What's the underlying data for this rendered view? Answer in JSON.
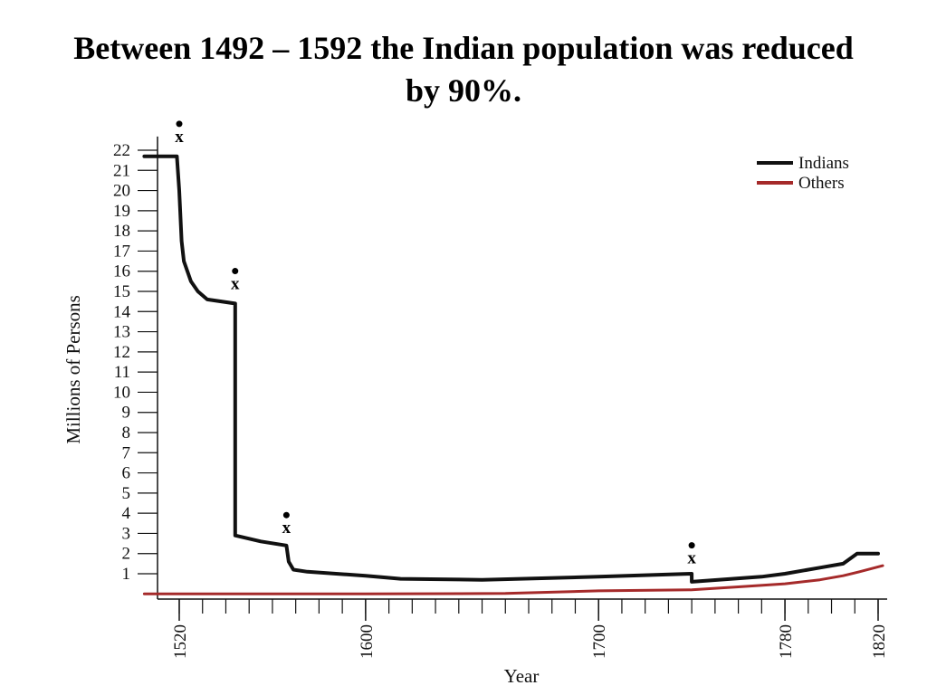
{
  "title_lines": [
    "Between 1492 – 1592 the Indian population was reduced",
    "by 90%."
  ],
  "chart_data": {
    "type": "line",
    "xlabel": "Year",
    "ylabel": "Millions of Persons",
    "xlim": [
      1505,
      1825
    ],
    "ylim": [
      0,
      22.5
    ],
    "xticks": [
      1520,
      1600,
      1700,
      1780,
      1820
    ],
    "yticks": [
      1,
      2,
      3,
      4,
      5,
      6,
      7,
      8,
      9,
      10,
      11,
      12,
      13,
      14,
      15,
      16,
      17,
      18,
      19,
      20,
      21,
      22
    ],
    "legend_position": "top-right",
    "series": [
      {
        "name": "Indians",
        "color": "#111111",
        "points": [
          [
            1505,
            21.7
          ],
          [
            1519,
            21.7
          ],
          [
            1520,
            20.0
          ],
          [
            1521,
            17.5
          ],
          [
            1522,
            16.5
          ],
          [
            1525,
            15.5
          ],
          [
            1528,
            15.0
          ],
          [
            1532,
            14.6
          ],
          [
            1544,
            14.4
          ],
          [
            1544,
            2.9
          ],
          [
            1555,
            2.6
          ],
          [
            1566,
            2.4
          ],
          [
            1567,
            1.6
          ],
          [
            1569,
            1.2
          ],
          [
            1575,
            1.1
          ],
          [
            1600,
            0.9
          ],
          [
            1615,
            0.75
          ],
          [
            1650,
            0.7
          ],
          [
            1700,
            0.85
          ],
          [
            1740,
            1.0
          ],
          [
            1740,
            0.6
          ],
          [
            1770,
            0.85
          ],
          [
            1780,
            1.0
          ],
          [
            1795,
            1.3
          ],
          [
            1805,
            1.5
          ],
          [
            1811,
            2.0
          ],
          [
            1820,
            2.0
          ]
        ]
      },
      {
        "name": "Others",
        "color": "#a52a2a",
        "points": [
          [
            1505,
            0.0
          ],
          [
            1600,
            0.0
          ],
          [
            1660,
            0.02
          ],
          [
            1700,
            0.15
          ],
          [
            1740,
            0.2
          ],
          [
            1760,
            0.35
          ],
          [
            1780,
            0.5
          ],
          [
            1795,
            0.7
          ],
          [
            1805,
            0.9
          ],
          [
            1812,
            1.1
          ],
          [
            1822,
            1.4
          ]
        ]
      }
    ],
    "markers": [
      {
        "label": "x",
        "x": 1520,
        "y": 22.5
      },
      {
        "label": "x",
        "x": 1544,
        "y": 15.2
      },
      {
        "label": "x",
        "x": 1566,
        "y": 3.1
      },
      {
        "label": "x",
        "x": 1740,
        "y": 1.6
      }
    ]
  }
}
